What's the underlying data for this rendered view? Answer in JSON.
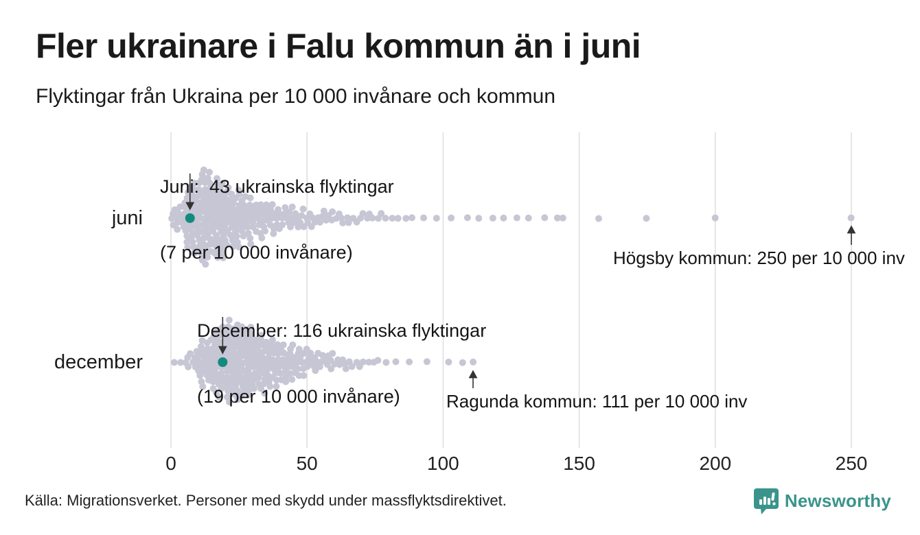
{
  "header": {
    "title": "Fler ukrainare i Falu kommun än i juni",
    "subtitle": "Flyktingar från Ukraina per 10 000 invånare och kommun"
  },
  "row_labels": {
    "juni": "juni",
    "december": "december"
  },
  "annotations": {
    "juni_line1": "Juni:  43 ukrainska flyktingar",
    "juni_line2": "(7 per 10 000 invånare)",
    "december_line1": "December: 116 ukrainska flyktingar",
    "december_line2": "(19 per 10 000 invånare)",
    "hogsby": "Högsby kommun: 250 per 10 000 inv",
    "ragunda": "Ragunda kommun: 111 per 10 000 inv"
  },
  "footer": {
    "source": "Källa: Migrationsverket. Personer med skydd under massflyktsdirektivet.",
    "brand": "Newsworthy"
  },
  "colors": {
    "dot": "#c7c6d4",
    "highlight": "#148a7c",
    "grid": "#d9d9d9",
    "arrow": "#333333",
    "text": "#1a1a1a",
    "brand": "#3a948b"
  },
  "chart_data": {
    "type": "scatter",
    "variant": "beeswarm-distribution",
    "title": "Fler ukrainare i Falu kommun än i juni",
    "subtitle": "Flyktingar från Ukraina per 10 000 invånare och kommun",
    "unit": "flyktingar per 10 000 invånare per kommun",
    "x_domain": [
      0,
      250
    ],
    "x_ticks": [
      0,
      50,
      100,
      150,
      200,
      250
    ],
    "grid": true,
    "legend": "none",
    "series": [
      {
        "name": "juni",
        "highlight": {
          "municipality": "Falu kommun",
          "refugees": 43,
          "per_10000": 7
        },
        "max_point": {
          "municipality": "Högsby kommun",
          "per_10000": 250
        },
        "distribution_bins": {
          "bin_width": 5,
          "start": 0,
          "counts": [
            12,
            36,
            50,
            42,
            32,
            24,
            18,
            14,
            11,
            9,
            7,
            6,
            5,
            4,
            4,
            3,
            2,
            2,
            1,
            1
          ]
        },
        "single_values": [
          103,
          109,
          113,
          118,
          122,
          127,
          131,
          137,
          142,
          144,
          157,
          175,
          200,
          250
        ]
      },
      {
        "name": "december",
        "highlight": {
          "municipality": "Falu kommun",
          "refugees": 116,
          "per_10000": 19
        },
        "max_point": {
          "municipality": "Ragunda kommun",
          "per_10000": 111
        },
        "distribution_bins": {
          "bin_width": 5,
          "start": 0,
          "counts": [
            2,
            8,
            24,
            38,
            44,
            40,
            31,
            25,
            20,
            14,
            10,
            8,
            6,
            4,
            3,
            2,
            1,
            1
          ]
        },
        "single_values": [
          94,
          102,
          107,
          111
        ]
      }
    ]
  }
}
